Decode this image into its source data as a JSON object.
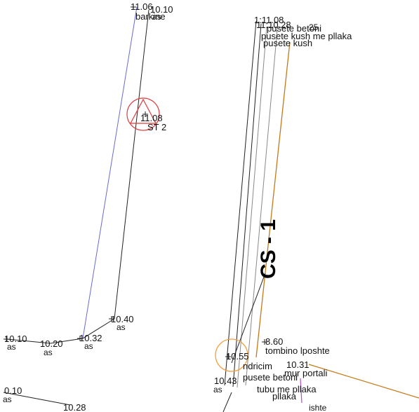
{
  "section": {
    "label": "CS - 1"
  },
  "stations": [
    {
      "id": "st2",
      "elevation": "11.08",
      "name": "ST 2",
      "marker_color": "#e03a3a"
    },
    {
      "id": "st-right",
      "elevation": "10.55",
      "marker_color": "#f0a040"
    }
  ],
  "left_points": [
    {
      "id": "p-top-1",
      "elevation": "11.06",
      "desc": "barkine"
    },
    {
      "id": "p-top-2",
      "elevation": "10.10",
      "desc": "as"
    },
    {
      "id": "p-mid-1",
      "elevation": "10.40",
      "desc": "as"
    },
    {
      "id": "p-mid-2",
      "elevation": "10.32",
      "desc": "as"
    },
    {
      "id": "p-mid-3",
      "elevation": "10.20",
      "desc": "as"
    },
    {
      "id": "p-mid-4",
      "elevation": "10.10",
      "desc": "as"
    },
    {
      "id": "p-bottom-1",
      "elevation": "0.10",
      "desc": "as"
    },
    {
      "id": "p-bottom-2",
      "elevation": "10.28",
      "desc": ""
    }
  ],
  "right_top_labels": [
    "1:11.08",
    "11:10.28",
    "pusete betoni",
    "pusete kush me pllaka",
    "pusete kush",
    "25"
  ],
  "right_bottom_labels": [
    "8.60",
    "tombino lposhte",
    "10.55",
    "ndricim",
    "10.31",
    "mur portali",
    "10.43",
    "pusete betoni",
    "as",
    "tubu me pllaka",
    "pllaka",
    "ishte"
  ],
  "colors": {
    "line_dark": "#222222",
    "line_blue": "#6a6acf",
    "line_orange": "#c47a1a",
    "line_grey": "#8a8a8a",
    "line_purple": "#b050d0"
  }
}
